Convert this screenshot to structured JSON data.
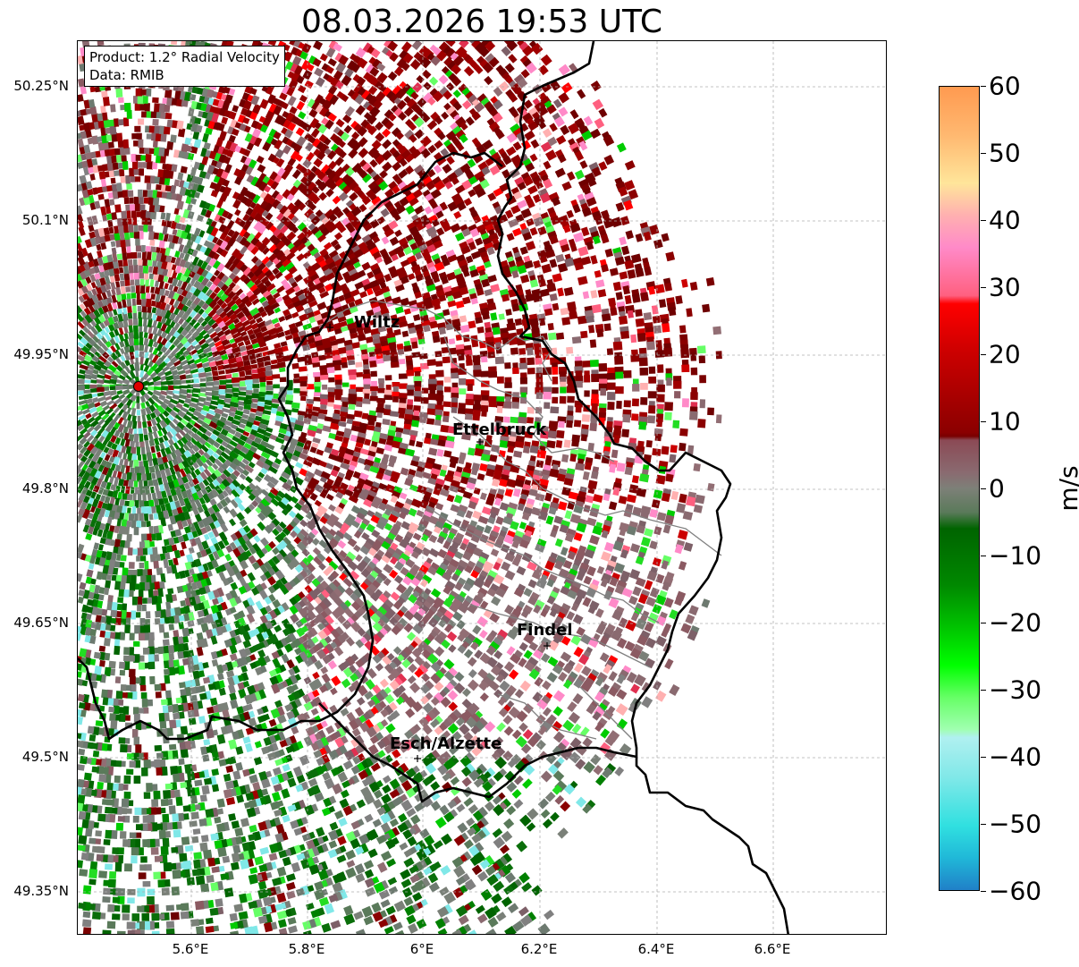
{
  "title": "08.03.2026 19:53 UTC",
  "info": {
    "product": "Product: 1.2° Radial Velocity",
    "data_source": "Data: RMIB"
  },
  "lat_labels": [
    "50.25°N",
    "50.1°N",
    "49.95°N",
    "49.8°N",
    "49.65°N",
    "49.5°N",
    "49.35°N"
  ],
  "lon_labels": [
    "5.6°E",
    "5.8°E",
    "6°E",
    "6.2°E",
    "6.4°E",
    "6.6°E"
  ],
  "cities": [
    {
      "name": "Wiltz"
    },
    {
      "name": "Ettelbruck"
    },
    {
      "name": "Findel"
    },
    {
      "name": "Esch/Alzette"
    }
  ],
  "colorbar": {
    "unit": "m/s",
    "ticks": [
      "60",
      "50",
      "40",
      "30",
      "20",
      "10",
      "0",
      "−10",
      "−20",
      "−30",
      "−40",
      "−50",
      "−60"
    ],
    "range": [
      -60,
      60
    ]
  },
  "colors": {
    "radar_site": "#e00000",
    "border": "#000000",
    "canton_border": "#808080"
  },
  "icons": {
    "radar_site": "red-circle-marker",
    "city": "plus-marker"
  }
}
